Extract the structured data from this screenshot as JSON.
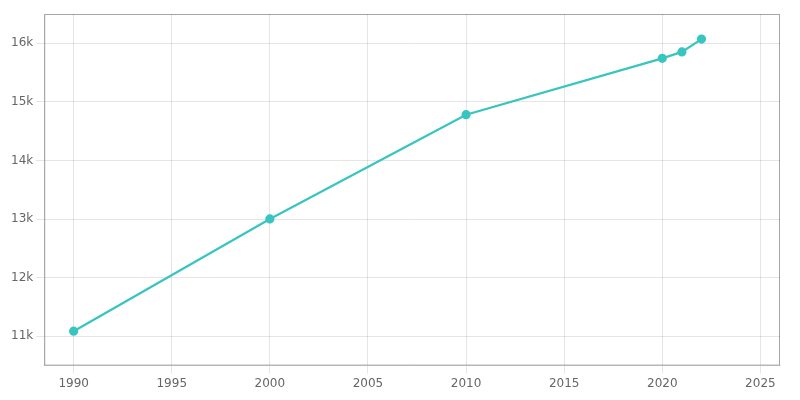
{
  "chart_data": {
    "type": "line",
    "x": [
      1990,
      2000,
      2010,
      2020,
      2021,
      2022
    ],
    "values": [
      11087,
      13003,
      14782,
      15743,
      15853,
      16072
    ],
    "color": "#38c5c0",
    "marker": "circle",
    "xlim": [
      1988.5,
      2026
    ],
    "ylim": [
      10500,
      16500
    ],
    "xticks": [
      1990,
      1995,
      2000,
      2005,
      2010,
      2015,
      2020,
      2025
    ],
    "yticks": [
      {
        "value": 11000,
        "label": "11k"
      },
      {
        "value": 12000,
        "label": "12k"
      },
      {
        "value": 13000,
        "label": "13k"
      },
      {
        "value": 14000,
        "label": "14k"
      },
      {
        "value": 15000,
        "label": "15k"
      },
      {
        "value": 16000,
        "label": "16k"
      }
    ],
    "grid": true
  }
}
